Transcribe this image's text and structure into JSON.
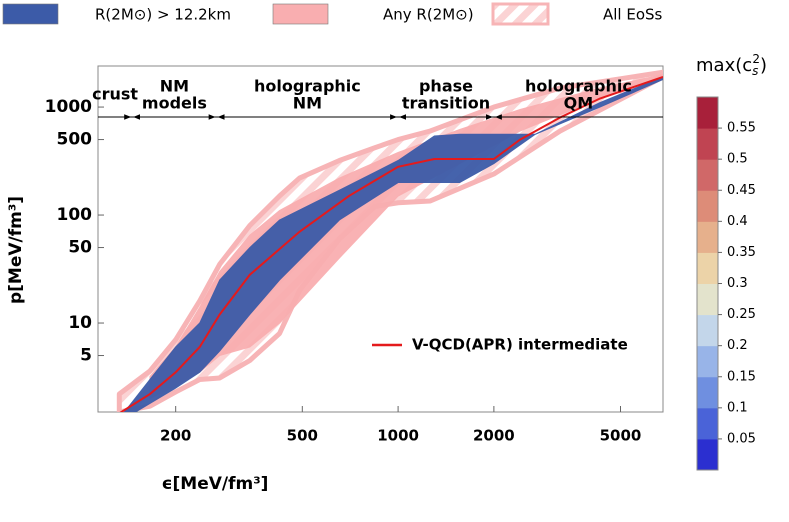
{
  "chart_data": {
    "type": "band",
    "xlabel": "ϵ[MeV/fm³]",
    "ylabel": "p[MeV/fm³]",
    "xscale": "log",
    "yscale": "log",
    "xlim": [
      114,
      6800
    ],
    "ylim": [
      1.5,
      2400
    ],
    "xticks": [
      200,
      500,
      1000,
      2000,
      5000
    ],
    "yticks": [
      5,
      10,
      50,
      100,
      500,
      1000
    ],
    "phase_boundaries": [
      146,
      269,
      1000,
      2000
    ],
    "phase_labels": [
      [
        "crust"
      ],
      [
        "NM",
        "models"
      ],
      [
        "holographic",
        "NM"
      ],
      [
        "phase",
        "transition"
      ],
      [
        "holographic",
        "QM"
      ]
    ],
    "series": [
      {
        "name": "All EoSs",
        "kind": "hatched",
        "color": "#f7b4b6",
        "x": [
          133,
          166,
          200,
          238,
          275,
          342,
          424,
          490,
          654,
          845,
          1000,
          1262,
          2000,
          3230,
          6800
        ],
        "lower": [
          1.5,
          1.7,
          2.3,
          3.0,
          3.1,
          4.5,
          8,
          20,
          60,
          120,
          130,
          135,
          240,
          600,
          1900
        ],
        "upper": [
          2.2,
          3.6,
          7,
          16,
          35,
          80,
          150,
          220,
          320,
          420,
          500,
          600,
          1000,
          1500,
          2100
        ]
      },
      {
        "name": "Any R(2M⊙)",
        "kind": "filled",
        "color": "#f9aeb0",
        "x": [
          166,
          200,
          238,
          275,
          342,
          424,
          654,
          1000,
          1562,
          2418,
          4310,
          6800
        ],
        "lower": [
          2.0,
          2.6,
          3.5,
          5,
          6,
          10,
          40,
          150,
          300,
          600,
          1200,
          1900
        ],
        "upper": [
          3.2,
          6,
          14,
          30,
          65,
          110,
          220,
          380,
          620,
          950,
          1500,
          2000
        ]
      },
      {
        "name": "R(2M⊙) > 12.2km",
        "kind": "filled",
        "color": "#3c5ba8",
        "x": [
          138,
          166,
          200,
          238,
          275,
          342,
          424,
          654,
          1000,
          1300,
          1562,
          2000,
          2700,
          4310,
          6800
        ],
        "lower": [
          1.3,
          1.8,
          2.5,
          3.5,
          5.5,
          12,
          25,
          90,
          200,
          200,
          200,
          300,
          560,
          1000,
          1800
        ],
        "upper": [
          1.5,
          3,
          6,
          10,
          25,
          50,
          90,
          170,
          320,
          540,
          560,
          560,
          560,
          1100,
          1900
        ]
      }
    ],
    "line": {
      "name": "V-QCD(APR) intermediate",
      "color": "#e41a1c",
      "x": [
        125,
        166,
        200,
        238,
        275,
        342,
        490,
        700,
        1000,
        1300,
        2000,
        2418,
        3230,
        4310,
        6800
      ],
      "y": [
        1.3,
        2.2,
        3.5,
        6,
        12,
        28,
        70,
        150,
        280,
        330,
        330,
        500,
        800,
        1200,
        1900
      ]
    },
    "colorbar": {
      "label": [
        "max(c",
        "s",
        "2",
        ")"
      ],
      "lim": [
        0,
        0.6
      ],
      "ticks": [
        0.05,
        0.1,
        0.15,
        0.2,
        0.25,
        0.3,
        0.35,
        0.4,
        0.45,
        0.5,
        0.55
      ],
      "colors": [
        "#2b2fd0",
        "#4a63d8",
        "#6f8fe0",
        "#98b4e8",
        "#c3d6ea",
        "#e3e3cc",
        "#ecd3a8",
        "#e6b08c",
        "#dd8c78",
        "#d06868",
        "#c04452",
        "#a8203a"
      ]
    }
  }
}
